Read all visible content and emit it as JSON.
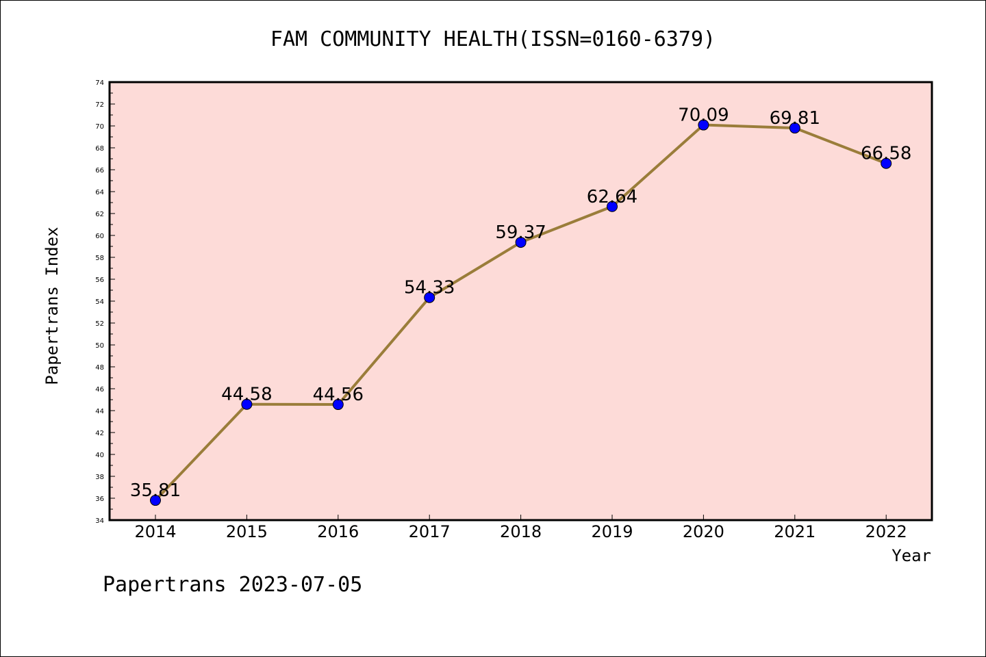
{
  "chart_data": {
    "type": "line",
    "title": "FAM COMMUNITY HEALTH(ISSN=0160-6379)",
    "xlabel": "Year",
    "ylabel": "Papertrans Index",
    "categories": [
      "2014",
      "2015",
      "2016",
      "2017",
      "2018",
      "2019",
      "2020",
      "2021",
      "2022"
    ],
    "values": [
      35.81,
      44.58,
      44.56,
      54.33,
      59.37,
      62.64,
      70.09,
      69.81,
      66.58
    ],
    "data_labels": [
      "35.81",
      "44.58",
      "44.56",
      "54.33",
      "59.37",
      "62.64",
      "70.09",
      "69.81",
      "66.58"
    ],
    "ylim": [
      34,
      74
    ],
    "y_ticks": [
      "34",
      "36",
      "38",
      "40",
      "42",
      "44",
      "46",
      "48",
      "50",
      "52",
      "54",
      "56",
      "58",
      "60",
      "62",
      "64",
      "66",
      "68",
      "70",
      "72",
      "74"
    ],
    "grid": false,
    "legend": "none",
    "footer": "Papertrans 2023-07-05",
    "colors": {
      "plot_background": "#fddbd8",
      "line": "#9a7d3a",
      "marker": "#0000ff",
      "frame": "#000000"
    }
  }
}
